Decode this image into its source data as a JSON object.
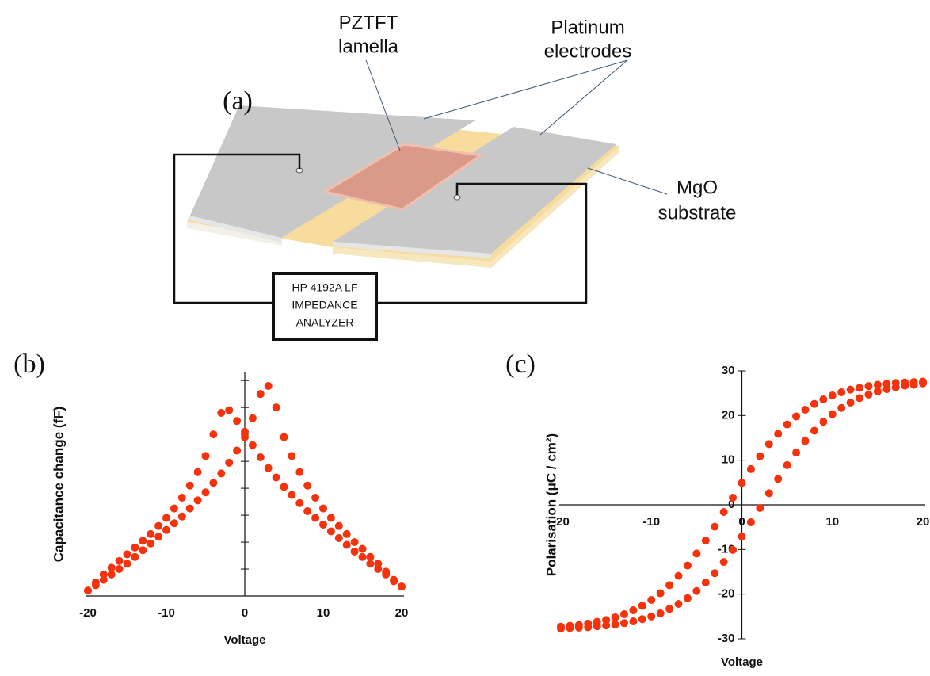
{
  "diagram": {
    "panel_label": "(a)",
    "lamella_label": [
      "PZTFT",
      "lamella"
    ],
    "electrodes_label": [
      "Platinum",
      "electrodes"
    ],
    "substrate_label": [
      "MgO",
      "substrate"
    ],
    "instrument_label": [
      "HP 4192A LF",
      "IMPEDANCE",
      "ANALYZER"
    ]
  },
  "chart_data": [
    {
      "type": "scatter",
      "panel_label": "(b)",
      "xlabel": "Voltage",
      "ylabel": "Capacitance change  (fF)",
      "color": "#f4320c",
      "x": [
        -20,
        -19,
        -18,
        -17,
        -16,
        -15,
        -14,
        -13,
        -12,
        -11,
        -10,
        -9,
        -8,
        -7,
        -6,
        -5,
        -4,
        -3,
        -2,
        -1,
        0,
        1,
        2,
        3,
        4,
        5,
        6,
        7,
        8,
        9,
        10,
        11,
        12,
        13,
        14,
        15,
        16,
        17,
        18,
        19,
        20,
        20,
        19,
        18,
        17,
        16,
        15,
        14,
        13,
        12,
        11,
        10,
        9,
        8,
        7,
        6,
        5,
        4,
        3,
        2,
        1,
        0,
        -1,
        -2,
        -3,
        -4,
        -5,
        -6,
        -7,
        -8,
        -9,
        -10,
        -11,
        -12,
        -13,
        -14,
        -15,
        -16,
        -17,
        -18,
        -19,
        -20
      ],
      "values": [
        0.2,
        0.4,
        0.6,
        0.8,
        1.0,
        1.2,
        1.45,
        1.7,
        1.95,
        2.2,
        2.45,
        2.7,
        2.95,
        3.25,
        3.55,
        3.85,
        4.2,
        4.55,
        4.95,
        5.4,
        5.9,
        6.6,
        7.5,
        7.8,
        7.0,
        5.9,
        5.2,
        4.6,
        4.1,
        3.65,
        3.25,
        2.9,
        2.6,
        2.3,
        2.0,
        1.75,
        1.45,
        1.2,
        0.9,
        0.6,
        0.35,
        0.35,
        0.55,
        0.8,
        1.0,
        1.2,
        1.45,
        1.65,
        1.9,
        2.15,
        2.4,
        2.65,
        2.9,
        3.15,
        3.45,
        3.75,
        4.05,
        4.4,
        4.75,
        5.15,
        5.6,
        6.1,
        6.5,
        6.9,
        6.8,
        6.0,
        5.2,
        4.6,
        4.1,
        3.65,
        3.25,
        2.9,
        2.6,
        2.3,
        2.05,
        1.8,
        1.55,
        1.3,
        1.05,
        0.8,
        0.5,
        0.2
      ],
      "xlim": [
        -20,
        20
      ],
      "ylim": [
        0,
        8.3
      ],
      "xticks": [
        -20,
        -10,
        0,
        10,
        20
      ],
      "yticks": [
        1,
        2,
        3,
        4,
        5,
        6,
        7,
        8
      ],
      "ytick_labels": false
    },
    {
      "type": "scatter",
      "panel_label": "(c)",
      "xlabel": "Voltage",
      "ylabel": "Polarisation  (μC / cm²)",
      "color": "#f4320c",
      "x": [
        -20,
        -19,
        -18,
        -17,
        -16,
        -15,
        -14,
        -13,
        -12,
        -11,
        -10,
        -9,
        -8,
        -7,
        -6,
        -5,
        -4,
        -3,
        -2,
        -1,
        0,
        1,
        2,
        3,
        4,
        5,
        6,
        7,
        8,
        9,
        10,
        11,
        12,
        13,
        14,
        15,
        16,
        17,
        18,
        19,
        20,
        20,
        19,
        18,
        17,
        16,
        15,
        14,
        13,
        12,
        11,
        10,
        9,
        8,
        7,
        6,
        5,
        4,
        3,
        2,
        1,
        0,
        -1,
        -2,
        -3,
        -4,
        -5,
        -6,
        -7,
        -8,
        -9,
        -10,
        -11,
        -12,
        -13,
        -14,
        -15,
        -16,
        -17,
        -18,
        -19,
        -20
      ],
      "values": [
        -27.7,
        -27.6,
        -27.5,
        -27.4,
        -27.2,
        -27.0,
        -26.8,
        -26.5,
        -26.1,
        -25.6,
        -25.0,
        -24.3,
        -23.3,
        -22.2,
        -20.9,
        -19.3,
        -17.4,
        -15.3,
        -12.8,
        -10.1,
        -7.1,
        -3.9,
        -0.7,
        2.6,
        5.8,
        8.9,
        11.7,
        14.3,
        16.6,
        18.6,
        20.3,
        21.7,
        22.9,
        23.9,
        24.7,
        25.4,
        25.9,
        26.3,
        26.7,
        26.9,
        27.2,
        27.6,
        27.5,
        27.4,
        27.3,
        27.1,
        26.9,
        26.6,
        26.2,
        25.8,
        25.2,
        24.5,
        23.6,
        22.6,
        21.3,
        19.8,
        18.0,
        15.9,
        13.6,
        10.9,
        8.0,
        4.9,
        1.6,
        -1.6,
        -4.9,
        -8.0,
        -10.9,
        -13.6,
        -15.9,
        -18.0,
        -19.8,
        -21.3,
        -22.6,
        -23.6,
        -24.5,
        -25.2,
        -25.8,
        -26.2,
        -26.6,
        -26.9,
        -27.1,
        -27.3
      ],
      "xlim": [
        -20,
        20
      ],
      "ylim": [
        -30,
        30
      ],
      "xticks": [
        -20,
        -10,
        0,
        10,
        20
      ],
      "yticks": [
        -30,
        -20,
        -10,
        0,
        10,
        20,
        30
      ]
    }
  ]
}
